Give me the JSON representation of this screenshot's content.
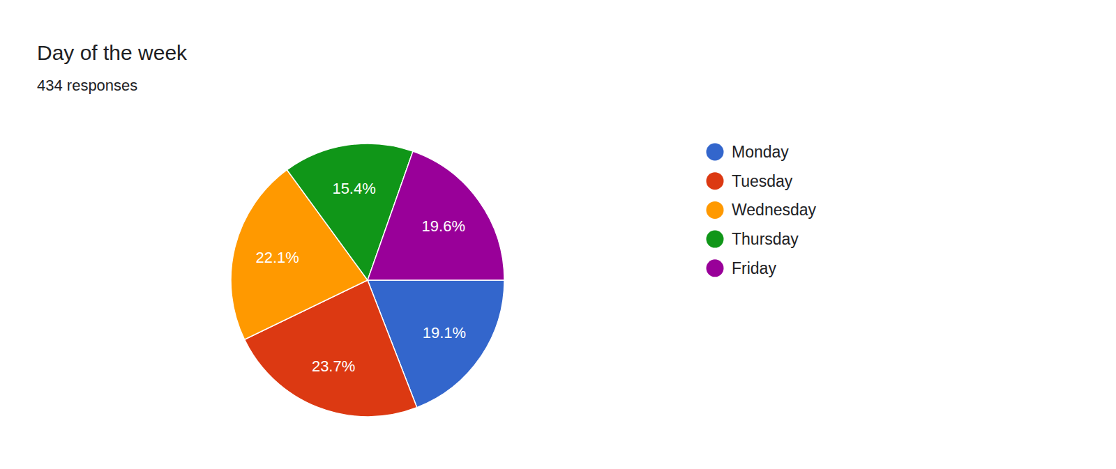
{
  "chart_data": {
    "type": "pie",
    "title": "Day of the week",
    "subtitle": "434 responses",
    "categories": [
      "Monday",
      "Tuesday",
      "Wednesday",
      "Thursday",
      "Friday"
    ],
    "values": [
      19.1,
      23.7,
      22.1,
      15.4,
      19.6
    ],
    "value_labels": [
      "19.1%",
      "23.7%",
      "22.1%",
      "15.4%",
      "19.6%"
    ],
    "colors": [
      "#3366cc",
      "#dc3912",
      "#ff9900",
      "#109618",
      "#990099"
    ],
    "data_labels": true,
    "legend": "right"
  }
}
